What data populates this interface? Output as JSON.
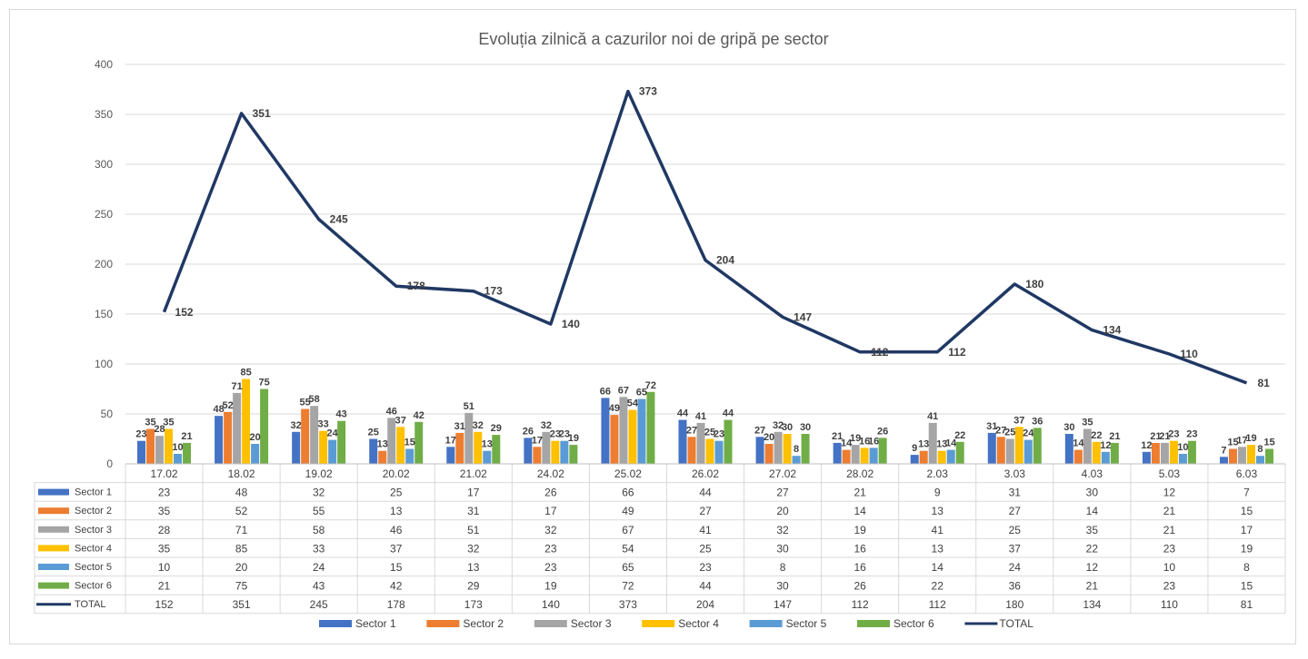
{
  "chart_data": {
    "type": "bar",
    "title": "Evoluția zilnică a cazurilor noi de gripă pe sector",
    "categories": [
      "17.02",
      "18.02",
      "19.02",
      "20.02",
      "21.02",
      "24.02",
      "25.02",
      "26.02",
      "27.02",
      "28.02",
      "2.03",
      "3.03",
      "4.03",
      "5.03",
      "6.03"
    ],
    "ylim": [
      0,
      400
    ],
    "yticks": [
      0,
      50,
      100,
      150,
      200,
      250,
      300,
      350,
      400
    ],
    "grid": true,
    "legend_position": "bottom",
    "series": [
      {
        "name": "Sector 1",
        "kind": "bar",
        "color": "#4472c4",
        "values": [
          23,
          48,
          32,
          25,
          17,
          26,
          66,
          44,
          27,
          21,
          9,
          31,
          30,
          12,
          7
        ]
      },
      {
        "name": "Sector 2",
        "kind": "bar",
        "color": "#ed7d31",
        "values": [
          35,
          52,
          55,
          13,
          31,
          17,
          49,
          27,
          20,
          14,
          13,
          27,
          14,
          21,
          15
        ]
      },
      {
        "name": "Sector 3",
        "kind": "bar",
        "color": "#a5a5a5",
        "values": [
          28,
          71,
          58,
          46,
          51,
          32,
          67,
          41,
          32,
          19,
          41,
          25,
          35,
          21,
          17
        ]
      },
      {
        "name": "Sector 4",
        "kind": "bar",
        "color": "#ffc000",
        "values": [
          35,
          85,
          33,
          37,
          32,
          23,
          54,
          25,
          30,
          16,
          13,
          37,
          22,
          23,
          19
        ]
      },
      {
        "name": "Sector 5",
        "kind": "bar",
        "color": "#5b9bd5",
        "values": [
          10,
          20,
          24,
          15,
          13,
          23,
          65,
          23,
          8,
          16,
          14,
          24,
          12,
          10,
          8
        ]
      },
      {
        "name": "Sector 6",
        "kind": "bar",
        "color": "#70ad47",
        "values": [
          21,
          75,
          43,
          42,
          29,
          19,
          72,
          44,
          30,
          26,
          22,
          36,
          21,
          23,
          15
        ]
      },
      {
        "name": "TOTAL",
        "kind": "line",
        "color": "#203864",
        "values": [
          152,
          351,
          245,
          178,
          173,
          140,
          373,
          204,
          147,
          112,
          112,
          180,
          134,
          110,
          81
        ]
      }
    ]
  }
}
